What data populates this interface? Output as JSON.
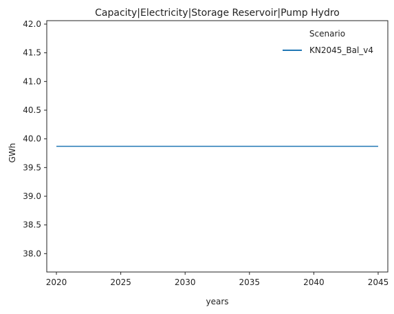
{
  "chart_data": {
    "type": "line",
    "title": "Capacity|Electricity|Storage Reservoir|Pump Hydro",
    "xlabel": "years",
    "ylabel": "GWh",
    "xlim": [
      2019.25,
      2045.75
    ],
    "ylim": [
      37.68,
      42.06
    ],
    "xticks": [
      2020,
      2025,
      2030,
      2035,
      2040,
      2045
    ],
    "yticks": [
      38.0,
      38.5,
      39.0,
      39.5,
      40.0,
      40.5,
      41.0,
      41.5,
      42.0
    ],
    "ytick_labels": [
      "38.0",
      "38.5",
      "39.0",
      "39.5",
      "40.0",
      "40.5",
      "41.0",
      "41.5",
      "42.0"
    ],
    "grid": false,
    "legend": {
      "title": "Scenario",
      "placement": "top-right"
    },
    "series": [
      {
        "name": "KN2045_Bal_v4",
        "color": "#1f77b4",
        "x": [
          2020,
          2025,
          2030,
          2035,
          2040,
          2045
        ],
        "y": [
          39.87,
          39.87,
          39.87,
          39.87,
          39.87,
          39.87
        ]
      }
    ]
  }
}
